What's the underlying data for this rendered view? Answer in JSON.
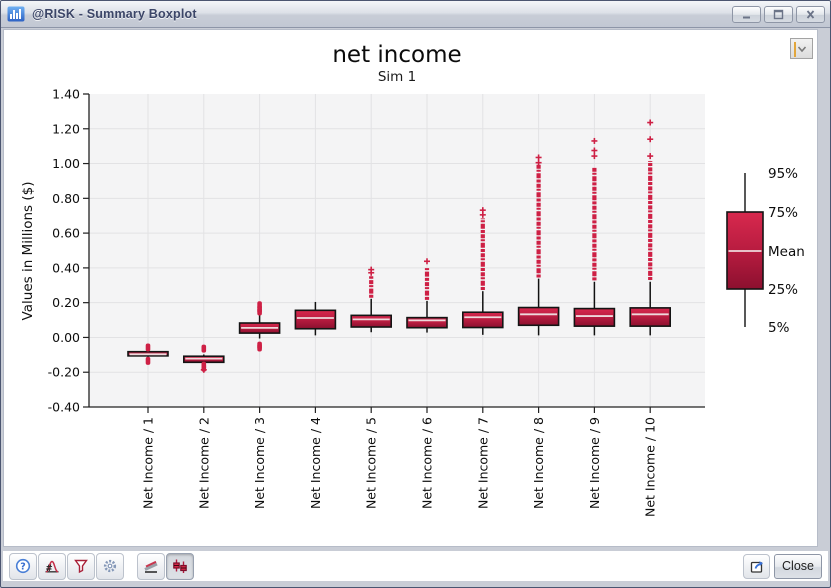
{
  "window": {
    "title": "@RISK - Summary Boxplot"
  },
  "chart_data": {
    "type": "boxplot",
    "title": "net income",
    "subtitle": "Sim 1",
    "ylabel": "Values in Millions ($)",
    "ylim": [
      -0.4,
      1.4
    ],
    "grid": true,
    "legend_position": "right",
    "yticks": [
      {
        "v": 1.4,
        "label": "1.40"
      },
      {
        "v": 1.2,
        "label": "1.20"
      },
      {
        "v": 1.0,
        "label": "1.00"
      },
      {
        "v": 0.8,
        "label": "0.80"
      },
      {
        "v": 0.6,
        "label": "0.60"
      },
      {
        "v": 0.4,
        "label": "0.40"
      },
      {
        "v": 0.2,
        "label": "0.20"
      },
      {
        "v": 0.0,
        "label": "0.00"
      },
      {
        "v": -0.2,
        "label": "-0.20"
      },
      {
        "v": -0.4,
        "label": "-0.40"
      }
    ],
    "categories": [
      "Net Income / 1",
      "Net Income / 2",
      "Net Income / 3",
      "Net Income / 4",
      "Net Income / 5",
      "Net Income / 6",
      "Net Income / 7",
      "Net Income / 8",
      "Net Income / 9",
      "Net Income / 10"
    ],
    "boxes": [
      {
        "p5": -0.112,
        "p25": -0.106,
        "mean": -0.097,
        "p75": -0.082,
        "p95": -0.075,
        "outliers": [
          -0.058,
          -0.135
        ],
        "extremes": [],
        "outlier_column": null
      },
      {
        "p5": -0.152,
        "p25": -0.143,
        "mean": -0.122,
        "p75": -0.108,
        "p95": -0.098,
        "outliers": [
          -0.064,
          -0.163,
          -0.174
        ],
        "extremes": [
          -0.186
        ],
        "outlier_column": null
      },
      {
        "p5": -0.006,
        "p25": 0.025,
        "mean": 0.055,
        "p75": 0.083,
        "p95": 0.127,
        "outliers": [
          0.149,
          0.163,
          0.185,
          -0.047,
          -0.058
        ],
        "extremes": [],
        "outlier_column": null
      },
      {
        "p5": 0.012,
        "p25": 0.05,
        "mean": 0.112,
        "p75": 0.156,
        "p95": 0.204,
        "outliers": [],
        "extremes": [],
        "outlier_column": null
      },
      {
        "p5": 0.03,
        "p25": 0.06,
        "mean": 0.104,
        "p75": 0.127,
        "p95": 0.222,
        "outliers": [],
        "extremes": [
          0.372,
          0.39
        ],
        "outlier_column": [
          0.228,
          0.352
        ]
      },
      {
        "p5": 0.028,
        "p25": 0.056,
        "mean": 0.098,
        "p75": 0.114,
        "p95": 0.21,
        "outliers": [],
        "extremes": [
          0.438
        ],
        "outlier_column": [
          0.216,
          0.4
        ]
      },
      {
        "p5": 0.015,
        "p25": 0.057,
        "mean": 0.116,
        "p75": 0.145,
        "p95": 0.266,
        "outliers": [],
        "extremes": [
          0.705,
          0.732
        ],
        "outlier_column": [
          0.273,
          0.685
        ]
      },
      {
        "p5": 0.012,
        "p25": 0.07,
        "mean": 0.133,
        "p75": 0.172,
        "p95": 0.338,
        "outliers": [],
        "extremes": [
          1.005,
          1.035
        ],
        "outlier_column": [
          0.345,
          0.995
        ]
      },
      {
        "p5": 0.012,
        "p25": 0.065,
        "mean": 0.123,
        "p75": 0.166,
        "p95": 0.32,
        "outliers": [],
        "extremes": [
          1.043,
          1.075,
          1.13
        ],
        "outlier_column": [
          0.328,
          0.975
        ]
      },
      {
        "p5": 0.012,
        "p25": 0.065,
        "mean": 0.133,
        "p75": 0.17,
        "p95": 0.32,
        "outliers": [],
        "extremes": [
          1.043,
          1.14,
          1.236
        ],
        "outlier_column": [
          0.33,
          1.015
        ]
      }
    ],
    "legend": {
      "entries": [
        "95%",
        "75%",
        "Mean",
        "25%",
        "5%"
      ]
    },
    "colors": {
      "box_fill_top": "#d8294e",
      "box_fill_mid": "#b81c40",
      "box_fill_bottom": "#8c102f",
      "box_border": "#141414",
      "mean_line": "#eed9dc",
      "outlier": "#ce2045",
      "whisker": "#111111",
      "plot_bg": "#f4f4f5",
      "gridline": "#e2e2e4"
    }
  },
  "toolbar": {
    "icons": [
      "help",
      "define-distribution",
      "filter",
      "settings",
      "overlay",
      "boxplot"
    ]
  },
  "footer": {
    "close_label": "Close"
  }
}
